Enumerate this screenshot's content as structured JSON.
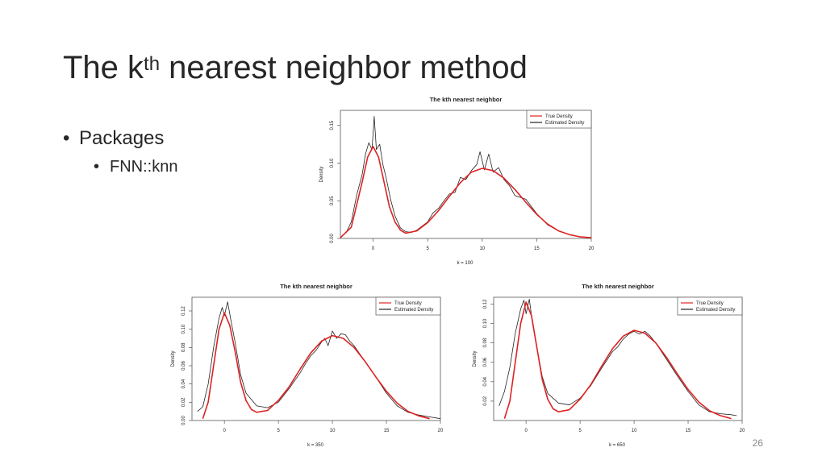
{
  "slide": {
    "title_main": "The k",
    "title_sup": "th",
    "title_rest": " nearest neighbor method",
    "bullet_1": "Packages",
    "bullet_2": "FNN::knn",
    "page_number": "26"
  },
  "chart_data": [
    {
      "type": "line",
      "title": "The kth nearest neighbor",
      "xlabel": "k =  100",
      "ylabel": "Density",
      "xlim": [
        -3,
        20
      ],
      "ylim": [
        0,
        0.17
      ],
      "xticks": [
        "0",
        "5",
        "10",
        "15",
        "20"
      ],
      "yticks": [
        "0.00",
        "0.05",
        "0.10",
        "0.15"
      ],
      "legend": {
        "position": "top-right",
        "entries": [
          "True Density",
          "Estimated Density"
        ]
      },
      "series": [
        {
          "name": "True Density",
          "color": "#dd2222",
          "x": [
            -3,
            -2,
            -1,
            -0.5,
            0,
            0.5,
            1,
            1.5,
            2,
            2.5,
            3,
            4,
            5,
            6,
            7,
            8,
            9,
            10,
            11,
            12,
            13,
            14,
            15,
            16,
            17,
            18,
            19,
            20
          ],
          "y": [
            0.001,
            0.015,
            0.075,
            0.108,
            0.122,
            0.108,
            0.075,
            0.042,
            0.022,
            0.011,
            0.007,
            0.01,
            0.021,
            0.037,
            0.056,
            0.074,
            0.088,
            0.093,
            0.09,
            0.08,
            0.065,
            0.048,
            0.032,
            0.019,
            0.01,
            0.005,
            0.002,
            0.001
          ]
        },
        {
          "name": "Estimated Density",
          "color": "#222222",
          "x": [
            -2.5,
            -2,
            -1.5,
            -1,
            -0.7,
            -0.4,
            -0.1,
            0.1,
            0.3,
            0.6,
            0.9,
            1.2,
            1.6,
            2,
            2.5,
            3,
            3.5,
            4,
            5,
            5.5,
            6,
            6.5,
            7,
            7.5,
            8,
            8.5,
            9,
            9.5,
            9.8,
            10.2,
            10.6,
            11,
            11.5,
            12,
            12.5,
            13,
            14,
            15,
            16,
            17,
            18,
            19,
            20
          ],
          "y": [
            0.007,
            0.022,
            0.058,
            0.085,
            0.112,
            0.127,
            0.118,
            0.162,
            0.118,
            0.125,
            0.098,
            0.08,
            0.052,
            0.03,
            0.014,
            0.009,
            0.008,
            0.011,
            0.022,
            0.034,
            0.04,
            0.05,
            0.059,
            0.061,
            0.081,
            0.078,
            0.09,
            0.098,
            0.115,
            0.091,
            0.112,
            0.088,
            0.094,
            0.078,
            0.07,
            0.057,
            0.052,
            0.033,
            0.018,
            0.01,
            0.005,
            0.002,
            0.001
          ]
        }
      ]
    },
    {
      "type": "line",
      "title": "The kth nearest neighbor",
      "xlabel": "k =  350",
      "ylabel": "Density",
      "xlim": [
        -3,
        20
      ],
      "ylim": [
        0,
        0.135
      ],
      "xticks": [
        "0",
        "5",
        "10",
        "15",
        "20"
      ],
      "yticks": [
        "0.00",
        "0.02",
        "0.04",
        "0.06",
        "0.08",
        "0.10",
        "0.12"
      ],
      "legend": {
        "position": "top-right",
        "entries": [
          "True Density",
          "Estimated Density"
        ]
      },
      "series": [
        {
          "name": "True Density",
          "color": "#dd2222",
          "x": [
            -2,
            -1.5,
            -1,
            -0.5,
            0,
            0.5,
            1,
            1.5,
            2,
            2.5,
            3,
            4,
            5,
            6,
            7,
            8,
            9,
            10,
            11,
            12,
            13,
            14,
            15,
            16,
            17,
            18,
            19
          ],
          "y": [
            0.002,
            0.02,
            0.06,
            0.1,
            0.118,
            0.104,
            0.075,
            0.042,
            0.022,
            0.012,
            0.009,
            0.011,
            0.022,
            0.037,
            0.056,
            0.074,
            0.087,
            0.093,
            0.09,
            0.08,
            0.065,
            0.048,
            0.032,
            0.019,
            0.01,
            0.005,
            0.002
          ]
        },
        {
          "name": "Estimated Density",
          "color": "#222222",
          "x": [
            -2.5,
            -2,
            -1.5,
            -1,
            -0.5,
            -0.2,
            0,
            0.3,
            0.6,
            1,
            1.5,
            2,
            3,
            4,
            5,
            6,
            7,
            7.5,
            8,
            8.5,
            9,
            9.3,
            9.6,
            10,
            10.4,
            10.8,
            11.2,
            11.6,
            12,
            13,
            14,
            15,
            16,
            17,
            18,
            19,
            20
          ],
          "y": [
            0.01,
            0.015,
            0.04,
            0.08,
            0.112,
            0.124,
            0.115,
            0.13,
            0.11,
            0.085,
            0.05,
            0.03,
            0.016,
            0.014,
            0.02,
            0.035,
            0.052,
            0.062,
            0.071,
            0.077,
            0.086,
            0.09,
            0.082,
            0.098,
            0.09,
            0.095,
            0.094,
            0.087,
            0.082,
            0.065,
            0.048,
            0.03,
            0.016,
            0.009,
            0.006,
            0.004,
            0.002
          ]
        }
      ]
    },
    {
      "type": "line",
      "title": "The kth nearest neighbor",
      "xlabel": "k =  650",
      "ylabel": "Density",
      "xlim": [
        -3,
        20
      ],
      "ylim": [
        0,
        0.127
      ],
      "xticks": [
        "0",
        "5",
        "10",
        "15",
        "20"
      ],
      "yticks": [
        "0.02",
        "0.04",
        "0.06",
        "0.08",
        "0.10",
        "0.12"
      ],
      "legend": {
        "position": "top-right",
        "entries": [
          "True Density",
          "Estimated Density"
        ]
      },
      "series": [
        {
          "name": "True Density",
          "color": "#dd2222",
          "x": [
            -2,
            -1.5,
            -1,
            -0.5,
            0,
            0.5,
            1,
            1.5,
            2,
            2.5,
            3,
            4,
            5,
            6,
            7,
            8,
            9,
            10,
            11,
            12,
            13,
            14,
            15,
            16,
            17,
            18,
            19
          ],
          "y": [
            0.002,
            0.02,
            0.06,
            0.1,
            0.122,
            0.108,
            0.075,
            0.042,
            0.022,
            0.012,
            0.009,
            0.011,
            0.022,
            0.037,
            0.056,
            0.074,
            0.087,
            0.093,
            0.09,
            0.08,
            0.065,
            0.048,
            0.032,
            0.019,
            0.01,
            0.005,
            0.002
          ]
        },
        {
          "name": "Estimated Density",
          "color": "#222222",
          "x": [
            -2.5,
            -2,
            -1.5,
            -1,
            -0.5,
            -0.2,
            0,
            0.3,
            0.6,
            1,
            1.5,
            2,
            3,
            4,
            5,
            6,
            7,
            8,
            8.5,
            9,
            9.5,
            10,
            10.5,
            11,
            11.5,
            12,
            13,
            14,
            15,
            16,
            17,
            18,
            19,
            19.5
          ],
          "y": [
            0.015,
            0.03,
            0.055,
            0.09,
            0.115,
            0.124,
            0.11,
            0.125,
            0.1,
            0.075,
            0.045,
            0.028,
            0.018,
            0.016,
            0.023,
            0.036,
            0.054,
            0.071,
            0.076,
            0.084,
            0.089,
            0.092,
            0.089,
            0.092,
            0.087,
            0.08,
            0.063,
            0.046,
            0.03,
            0.016,
            0.009,
            0.007,
            0.006,
            0.005
          ]
        }
      ]
    }
  ]
}
